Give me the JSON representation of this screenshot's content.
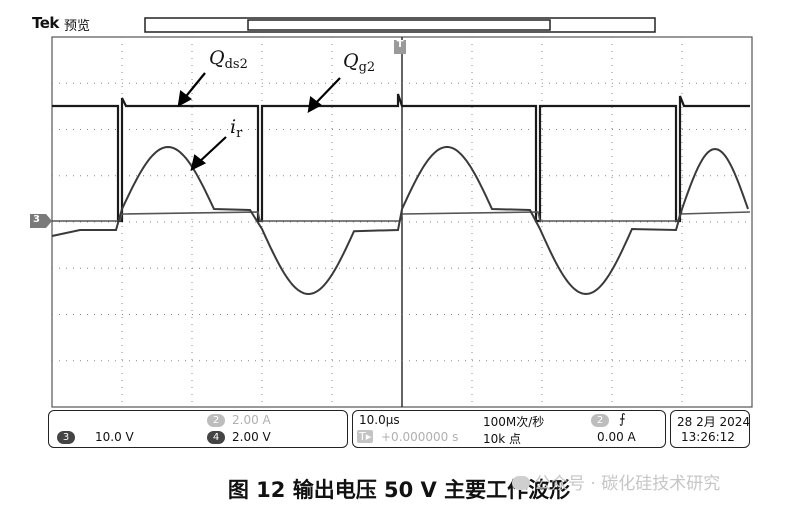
{
  "header": {
    "brand": "Tek",
    "mode": "预览"
  },
  "trigger_marker": "T",
  "annotations": {
    "qds2": {
      "main": "Q",
      "sub": "ds2"
    },
    "qg2": {
      "main": "Q",
      "sub": "g2"
    },
    "ir": {
      "main": "i",
      "sub": "r"
    }
  },
  "channel_marker": "3",
  "status": {
    "ch2_num": "2",
    "ch2_scale": "2.00 A",
    "ch3_num": "3",
    "ch3_scale": "10.0 V",
    "ch4_num": "4",
    "ch4_scale": "2.00 V",
    "timebase": "10.0μs",
    "delay": "+0.000000 s",
    "sample_rate": "100M次/秒",
    "record_length": "10k 点",
    "trig_num": "2",
    "trig_slope": "⨍",
    "trig_level": "0.00 A",
    "date": "28 2月 2024",
    "time": "13:26:12"
  },
  "caption": "图 12   输出电压 50 V 主要工作波形",
  "watermark": "公众号 · 碳化硅技术研究"
}
